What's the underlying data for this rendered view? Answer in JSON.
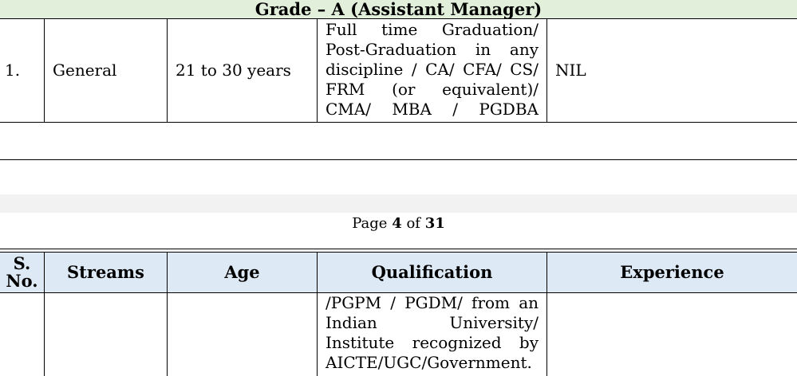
{
  "grade_header": "Grade – A (Assistant Manager)",
  "row1": {
    "sno": "1.",
    "stream": "General",
    "age": "21 to 30 years",
    "qualification_lines": [
      "Full time Graduation/",
      "Post-Graduation in any",
      "discipline / CA/ CFA/ CS/",
      "FRM (or equivalent)/",
      "CMA/ MBA / PGDBA"
    ],
    "experience": "NIL"
  },
  "footer": {
    "prefix": "Page",
    "current": "4",
    "mid": "of",
    "total": "31"
  },
  "table_header": {
    "sno_line1": "S.",
    "sno_line2": "No.",
    "streams": "Streams",
    "age": "Age",
    "qualification": "Qualification",
    "experience": "Experience"
  },
  "row2": {
    "qualification_lines": [
      "/PGPM / PGDM/ from an",
      "Indian University/",
      "Institute recognized by",
      "AICTE/UGC/Government."
    ]
  }
}
